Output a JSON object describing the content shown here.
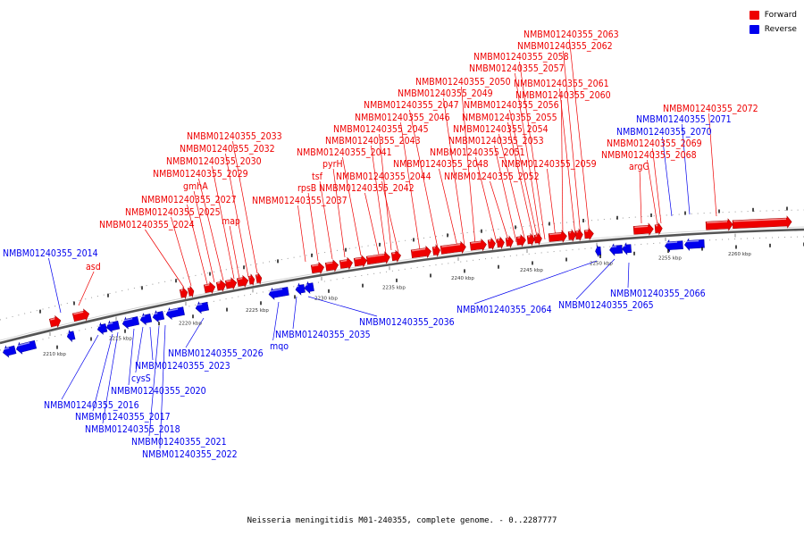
{
  "legend": {
    "forward_label": "Forward",
    "reverse_label": "Reverse",
    "forward_color": "#ee0000",
    "reverse_color": "#0000ee"
  },
  "caption": "Neisseria meningitidis M01-240355, complete genome. - 0..2287777",
  "scale_ticks": [
    "2210 kbp",
    "2215 kbp",
    "2220 kbp",
    "2225 kbp",
    "2230 kbp",
    "2235 kbp",
    "2240 kbp",
    "2245 kbp",
    "2250 kbp",
    "2255 kbp",
    "2260 kbp"
  ],
  "genes": [
    {
      "label": "NMBM01240355_2014",
      "strand": "reverse"
    },
    {
      "label": "asd",
      "strand": "forward"
    },
    {
      "label": "NMBM01240355_2016",
      "strand": "reverse"
    },
    {
      "label": "NMBM01240355_2017",
      "strand": "reverse"
    },
    {
      "label": "NMBM01240355_2018",
      "strand": "reverse"
    },
    {
      "label": "NMBM01240355_2020",
      "strand": "reverse"
    },
    {
      "label": "cysS",
      "strand": "reverse"
    },
    {
      "label": "NMBM01240355_2021",
      "strand": "reverse"
    },
    {
      "label": "NMBM01240355_2022",
      "strand": "reverse"
    },
    {
      "label": "NMBM01240355_2023",
      "strand": "reverse"
    },
    {
      "label": "NMBM01240355_2024",
      "strand": "forward"
    },
    {
      "label": "NMBM01240355_2025",
      "strand": "forward"
    },
    {
      "label": "NMBM01240355_2027",
      "strand": "forward"
    },
    {
      "label": "map",
      "strand": "forward"
    },
    {
      "label": "gmhA",
      "strand": "forward"
    },
    {
      "label": "NMBM01240355_2029",
      "strand": "forward"
    },
    {
      "label": "NMBM01240355_2030",
      "strand": "forward"
    },
    {
      "label": "NMBM01240355_2032",
      "strand": "forward"
    },
    {
      "label": "NMBM01240355_2033",
      "strand": "forward"
    },
    {
      "label": "NMBM01240355_2026",
      "strand": "reverse"
    },
    {
      "label": "mqo",
      "strand": "reverse"
    },
    {
      "label": "NMBM01240355_2035",
      "strand": "reverse"
    },
    {
      "label": "NMBM01240355_2036",
      "strand": "reverse"
    },
    {
      "label": "NMBM01240355_2037",
      "strand": "forward"
    },
    {
      "label": "rpsB",
      "strand": "forward"
    },
    {
      "label": "tsf",
      "strand": "forward"
    },
    {
      "label": "pyrH",
      "strand": "forward"
    },
    {
      "label": "NMBM01240355_2041",
      "strand": "forward"
    },
    {
      "label": "NMBM01240355_2042",
      "strand": "forward"
    },
    {
      "label": "NMBM01240355_2043",
      "strand": "forward"
    },
    {
      "label": "NMBM01240355_2044",
      "strand": "forward"
    },
    {
      "label": "NMBM01240355_2045",
      "strand": "forward"
    },
    {
      "label": "NMBM01240355_2046",
      "strand": "forward"
    },
    {
      "label": "NMBM01240355_2047",
      "strand": "forward"
    },
    {
      "label": "NMBM01240355_2048",
      "strand": "forward"
    },
    {
      "label": "NMBM01240355_2049",
      "strand": "forward"
    },
    {
      "label": "NMBM01240355_2050",
      "strand": "forward"
    },
    {
      "label": "NMBM01240355_2051",
      "strand": "forward"
    },
    {
      "label": "NMBM01240355_2052",
      "strand": "forward"
    },
    {
      "label": "NMBM01240355_2053",
      "strand": "forward"
    },
    {
      "label": "NMBM01240355_2054",
      "strand": "forward"
    },
    {
      "label": "NMBM01240355_2055",
      "strand": "forward"
    },
    {
      "label": "NMBM01240355_2056",
      "strand": "forward"
    },
    {
      "label": "NMBM01240355_2057",
      "strand": "forward"
    },
    {
      "label": "NMBM01240355_2058",
      "strand": "forward"
    },
    {
      "label": "NMBM01240355_2059",
      "strand": "forward"
    },
    {
      "label": "NMBM01240355_2060",
      "strand": "forward"
    },
    {
      "label": "NMBM01240355_2061",
      "strand": "forward"
    },
    {
      "label": "NMBM01240355_2062",
      "strand": "forward"
    },
    {
      "label": "NMBM01240355_2063",
      "strand": "forward"
    },
    {
      "label": "NMBM01240355_2064",
      "strand": "reverse"
    },
    {
      "label": "NMBM01240355_2065",
      "strand": "reverse"
    },
    {
      "label": "NMBM01240355_2066",
      "strand": "reverse"
    },
    {
      "label": "argG",
      "strand": "forward"
    },
    {
      "label": "NMBM01240355_2068",
      "strand": "forward"
    },
    {
      "label": "NMBM01240355_2069",
      "strand": "forward"
    },
    {
      "label": "NMBM01240355_2070",
      "strand": "reverse"
    },
    {
      "label": "NMBM01240355_2071",
      "strand": "reverse"
    },
    {
      "label": "NMBM01240355_2072",
      "strand": "forward"
    }
  ]
}
